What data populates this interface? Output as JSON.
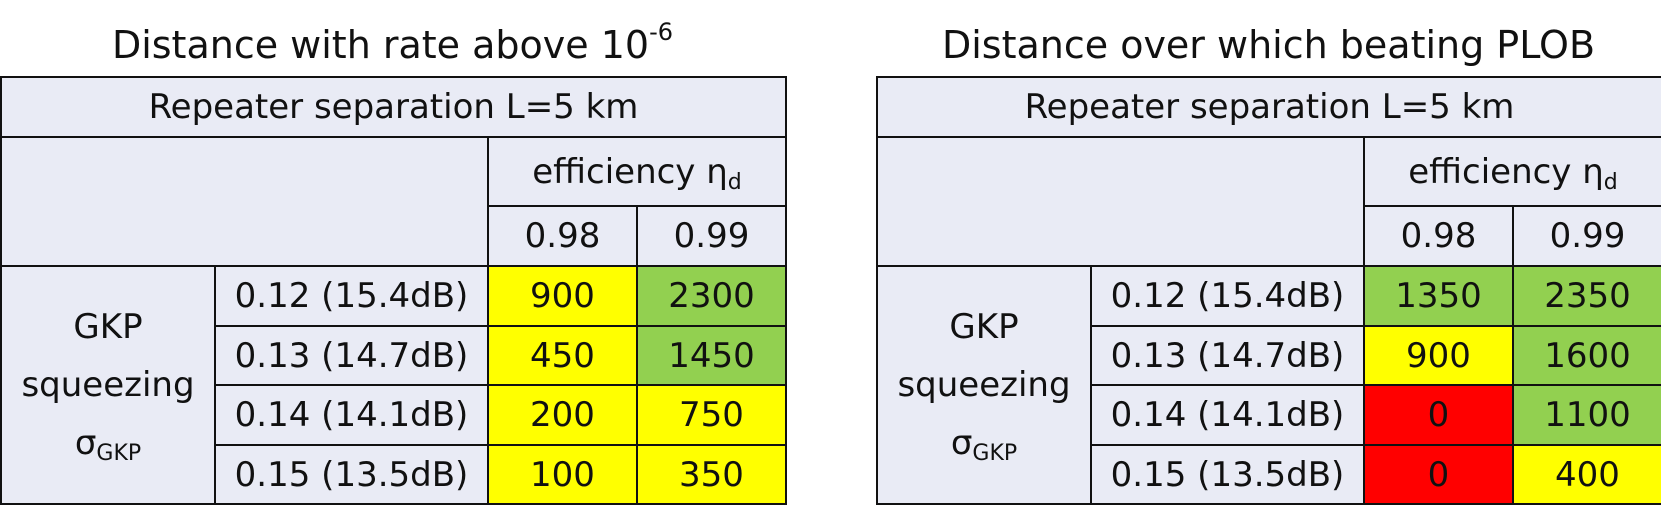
{
  "tables": [
    {
      "title": "Distance with rate above 10",
      "title_superscript": "-6",
      "header": "Repeater separation L=5 km",
      "column_group": "efficiency η",
      "column_group_subscript": "d",
      "columns": [
        "0.98",
        "0.99"
      ],
      "row_group_lines": [
        "GKP",
        "squeezing",
        "σ"
      ],
      "row_group_subscript": "GKP",
      "rows": [
        {
          "label": "0.12 (15.4dB)",
          "cells": [
            900,
            2300
          ],
          "colors": [
            "#ffff00",
            "#92d050"
          ]
        },
        {
          "label": "0.13 (14.7dB)",
          "cells": [
            450,
            1450
          ],
          "colors": [
            "#ffff00",
            "#92d050"
          ]
        },
        {
          "label": "0.14 (14.1dB)",
          "cells": [
            200,
            750
          ],
          "colors": [
            "#ffff00",
            "#ffff00"
          ]
        },
        {
          "label": "0.15 (13.5dB)",
          "cells": [
            100,
            350
          ],
          "colors": [
            "#ffff00",
            "#ffff00"
          ]
        }
      ]
    },
    {
      "title": "Distance over which beating PLOB",
      "header": "Repeater separation L=5 km",
      "column_group": "efficiency η",
      "column_group_subscript": "d",
      "columns": [
        "0.98",
        "0.99"
      ],
      "row_group_lines": [
        "GKP",
        "squeezing",
        "σ"
      ],
      "row_group_subscript": "GKP",
      "rows": [
        {
          "label": "0.12 (15.4dB)",
          "cells": [
            1350,
            2350
          ],
          "colors": [
            "#92d050",
            "#92d050"
          ]
        },
        {
          "label": "0.13 (14.7dB)",
          "cells": [
            900,
            1600
          ],
          "colors": [
            "#ffff00",
            "#92d050"
          ]
        },
        {
          "label": "0.14 (14.1dB)",
          "cells": [
            0,
            1100
          ],
          "colors": [
            "#ff0000",
            "#92d050"
          ]
        },
        {
          "label": "0.15 (13.5dB)",
          "cells": [
            0,
            400
          ],
          "colors": [
            "#ff0000",
            "#ffff00"
          ]
        }
      ]
    }
  ]
}
